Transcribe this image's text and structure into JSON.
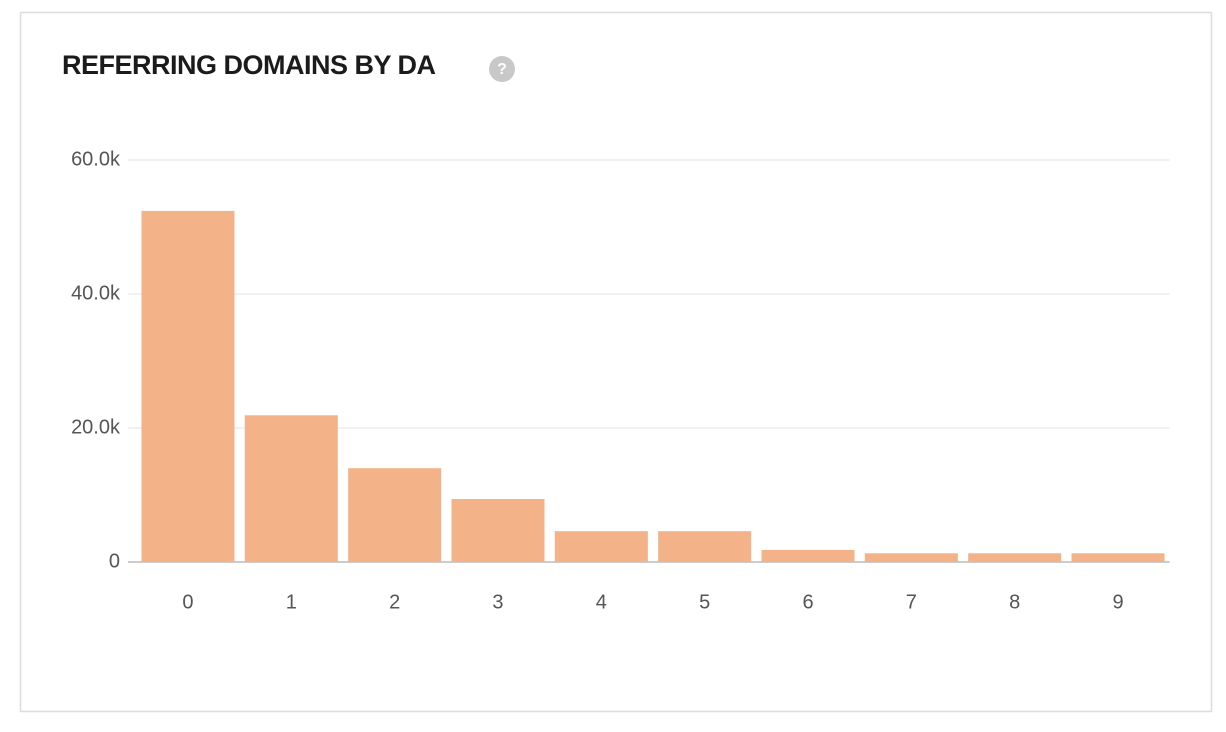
{
  "chart_data": {
    "type": "bar",
    "title": "REFERRING DOMAINS BY DA",
    "categories": [
      "0",
      "1",
      "2",
      "3",
      "4",
      "5",
      "6",
      "7",
      "8",
      "9"
    ],
    "values": [
      52400,
      21900,
      14000,
      9400,
      4600,
      4600,
      1800,
      1300,
      1300,
      1300
    ],
    "color": "#f3b287",
    "ylim": [
      0,
      60000
    ],
    "yticks": [
      0,
      {
        "value": 20000,
        "label": "20.0k"
      },
      {
        "value": 40000,
        "label": "40.0k"
      },
      {
        "value": 60000,
        "label": "60.0k"
      }
    ],
    "grid": true
  },
  "help_icon": "?"
}
